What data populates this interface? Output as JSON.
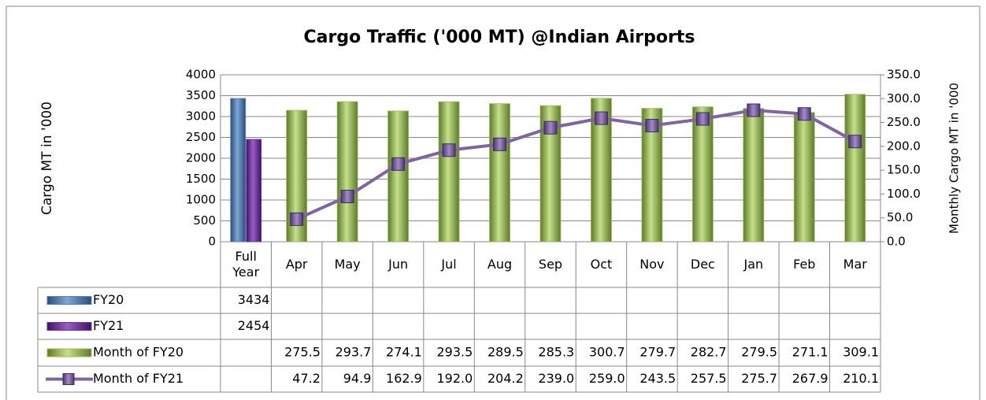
{
  "chart_data": {
    "type": "bar",
    "title": "Cargo Traffic ('000 MT) @Indian Airports",
    "y_label": "Cargo MT in '000",
    "y2_label": "Monthly Cargo MT in '000",
    "categories": [
      "Full Year",
      "Apr",
      "May",
      "Jun",
      "Jul",
      "Aug",
      "Sep",
      "Oct",
      "Nov",
      "Dec",
      "Jan",
      "Feb",
      "Mar"
    ],
    "series": [
      {
        "name": "FY20",
        "type": "bar",
        "axis": "y",
        "color": "#4f81bd",
        "values": [
          3434,
          null,
          null,
          null,
          null,
          null,
          null,
          null,
          null,
          null,
          null,
          null,
          null
        ]
      },
      {
        "name": "FY21",
        "type": "bar",
        "axis": "y",
        "color": "#7030a0",
        "values": [
          2454,
          null,
          null,
          null,
          null,
          null,
          null,
          null,
          null,
          null,
          null,
          null,
          null
        ]
      },
      {
        "name": "Month of FY20",
        "type": "bar",
        "axis": "y2",
        "color": "#9bbb59",
        "values": [
          null,
          275.5,
          293.7,
          274.1,
          293.5,
          289.5,
          285.3,
          300.7,
          279.7,
          282.7,
          279.5,
          271.1,
          309.1
        ],
        "value_labels": [
          null,
          "275.5",
          "293.7",
          "274.1",
          "293.5",
          "289.5",
          "285.3",
          "300.7",
          "279.7",
          "282.7",
          "279.5",
          "271.1",
          "309.1"
        ]
      },
      {
        "name": "Month of FY21",
        "type": "line",
        "axis": "y2",
        "color": "#8064a2",
        "values": [
          null,
          47.2,
          94.9,
          162.9,
          192.0,
          204.2,
          239.0,
          259.0,
          243.5,
          257.5,
          275.7,
          267.9,
          210.1
        ],
        "value_labels": [
          null,
          "47.2",
          "94.9",
          "162.9",
          "192.0",
          "204.2",
          "239.0",
          "259.0",
          "243.5",
          "257.5",
          "275.7",
          "267.9",
          "210.1"
        ]
      }
    ],
    "ylim": [
      0,
      4000
    ],
    "yticks": [
      0,
      500,
      1000,
      1500,
      2000,
      2500,
      3000,
      3500,
      4000
    ],
    "y2lim": [
      0,
      350
    ],
    "y2ticks": [
      {
        "value": 0,
        "label": "0.0"
      },
      {
        "value": 50,
        "label": "50.0"
      },
      {
        "value": 100,
        "label": "100.0"
      },
      {
        "value": 150,
        "label": "150.0"
      },
      {
        "value": 200,
        "label": "200.0"
      },
      {
        "value": 250,
        "label": "250.0"
      },
      {
        "value": 300,
        "label": "300.0"
      },
      {
        "value": 350,
        "label": "350.0"
      }
    ],
    "grid": true
  }
}
